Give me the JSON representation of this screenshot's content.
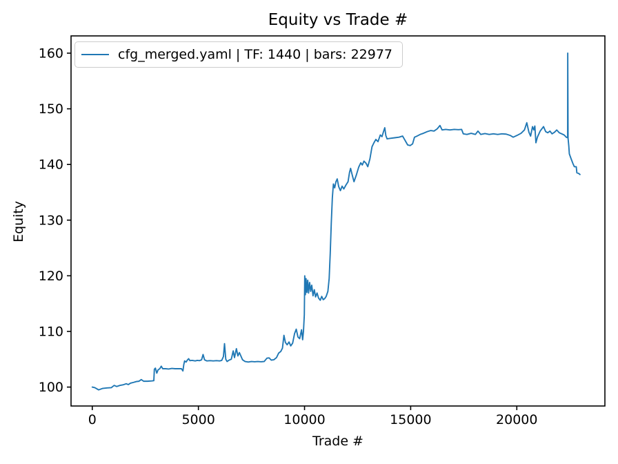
{
  "chart_data": {
    "type": "line",
    "title": "Equity vs Trade #",
    "xlabel": "Trade #",
    "ylabel": "Equity",
    "grid": false,
    "legend_position": "upper left",
    "line_color": "#1f77b4",
    "xlim": [
      -1000,
      24150
    ],
    "ylim": [
      96.6,
      163.1
    ],
    "xticks": {
      "values": [
        0,
        5000,
        10000,
        15000,
        20000
      ],
      "labels": [
        "0",
        "5000",
        "10000",
        "15000",
        "20000"
      ]
    },
    "yticks": {
      "values": [
        100,
        110,
        120,
        130,
        140,
        150,
        160
      ],
      "labels": [
        "100",
        "110",
        "120",
        "130",
        "140",
        "150",
        "160"
      ]
    },
    "series": [
      {
        "name": "cfg_merged.yaml | TF: 1440 | bars: 22977",
        "color": "#1f77b4",
        "points": [
          [
            0,
            100.0
          ],
          [
            120,
            99.9
          ],
          [
            300,
            99.5
          ],
          [
            480,
            99.75
          ],
          [
            700,
            99.85
          ],
          [
            900,
            99.9
          ],
          [
            1030,
            100.3
          ],
          [
            1150,
            100.1
          ],
          [
            1300,
            100.3
          ],
          [
            1450,
            100.4
          ],
          [
            1600,
            100.6
          ],
          [
            1700,
            100.45
          ],
          [
            1800,
            100.7
          ],
          [
            1950,
            100.85
          ],
          [
            2080,
            101.0
          ],
          [
            2200,
            101.05
          ],
          [
            2310,
            101.35
          ],
          [
            2420,
            101.05
          ],
          [
            2600,
            101.05
          ],
          [
            2800,
            101.1
          ],
          [
            2900,
            101.15
          ],
          [
            2925,
            103.2
          ],
          [
            2975,
            103.4
          ],
          [
            3040,
            102.5
          ],
          [
            3100,
            103.1
          ],
          [
            3180,
            103.3
          ],
          [
            3250,
            103.75
          ],
          [
            3320,
            103.3
          ],
          [
            3450,
            103.3
          ],
          [
            3600,
            103.25
          ],
          [
            3750,
            103.35
          ],
          [
            3900,
            103.3
          ],
          [
            4050,
            103.3
          ],
          [
            4200,
            103.3
          ],
          [
            4270,
            102.9
          ],
          [
            4310,
            104.0
          ],
          [
            4350,
            104.7
          ],
          [
            4420,
            104.5
          ],
          [
            4480,
            104.85
          ],
          [
            4540,
            105.1
          ],
          [
            4600,
            104.75
          ],
          [
            4700,
            104.8
          ],
          [
            4850,
            104.7
          ],
          [
            4950,
            104.8
          ],
          [
            5050,
            104.75
          ],
          [
            5150,
            104.9
          ],
          [
            5220,
            105.85
          ],
          [
            5290,
            104.9
          ],
          [
            5400,
            104.7
          ],
          [
            5550,
            104.75
          ],
          [
            5700,
            104.7
          ],
          [
            5850,
            104.75
          ],
          [
            6000,
            104.7
          ],
          [
            6100,
            104.8
          ],
          [
            6180,
            105.5
          ],
          [
            6230,
            107.8
          ],
          [
            6290,
            105.0
          ],
          [
            6350,
            104.6
          ],
          [
            6450,
            104.85
          ],
          [
            6550,
            105.0
          ],
          [
            6640,
            106.5
          ],
          [
            6700,
            105.3
          ],
          [
            6790,
            106.9
          ],
          [
            6860,
            105.6
          ],
          [
            6930,
            106.2
          ],
          [
            7000,
            105.6
          ],
          [
            7080,
            104.9
          ],
          [
            7200,
            104.6
          ],
          [
            7350,
            104.5
          ],
          [
            7500,
            104.6
          ],
          [
            7650,
            104.55
          ],
          [
            7800,
            104.6
          ],
          [
            7950,
            104.55
          ],
          [
            8100,
            104.6
          ],
          [
            8230,
            105.2
          ],
          [
            8330,
            105.25
          ],
          [
            8430,
            104.85
          ],
          [
            8550,
            104.9
          ],
          [
            8680,
            105.3
          ],
          [
            8780,
            106.1
          ],
          [
            8880,
            106.4
          ],
          [
            8960,
            107.0
          ],
          [
            9030,
            109.3
          ],
          [
            9100,
            108.0
          ],
          [
            9180,
            107.6
          ],
          [
            9270,
            108.1
          ],
          [
            9350,
            107.4
          ],
          [
            9440,
            107.9
          ],
          [
            9530,
            109.6
          ],
          [
            9610,
            110.4
          ],
          [
            9690,
            109.0
          ],
          [
            9770,
            108.7
          ],
          [
            9860,
            110.3
          ],
          [
            9910,
            108.5
          ],
          [
            9950,
            110.0
          ],
          [
            9990,
            113.0
          ],
          [
            10010,
            120.0
          ],
          [
            10040,
            116.6
          ],
          [
            10070,
            119.5
          ],
          [
            10110,
            117.0
          ],
          [
            10150,
            119.2
          ],
          [
            10190,
            116.9
          ],
          [
            10240,
            118.8
          ],
          [
            10290,
            117.2
          ],
          [
            10340,
            118.3
          ],
          [
            10400,
            116.4
          ],
          [
            10460,
            117.5
          ],
          [
            10520,
            116.2
          ],
          [
            10590,
            116.9
          ],
          [
            10660,
            116.0
          ],
          [
            10740,
            115.6
          ],
          [
            10810,
            116.3
          ],
          [
            10880,
            115.7
          ],
          [
            10950,
            115.9
          ],
          [
            11020,
            116.3
          ],
          [
            11100,
            117.2
          ],
          [
            11160,
            119.5
          ],
          [
            11210,
            124.0
          ],
          [
            11260,
            129.5
          ],
          [
            11310,
            134.0
          ],
          [
            11360,
            136.5
          ],
          [
            11420,
            135.8
          ],
          [
            11480,
            136.9
          ],
          [
            11540,
            137.4
          ],
          [
            11610,
            136.0
          ],
          [
            11690,
            135.3
          ],
          [
            11770,
            136.1
          ],
          [
            11850,
            135.6
          ],
          [
            11950,
            136.3
          ],
          [
            12050,
            136.9
          ],
          [
            12120,
            138.6
          ],
          [
            12170,
            139.3
          ],
          [
            12240,
            138.2
          ],
          [
            12330,
            136.9
          ],
          [
            12440,
            138.1
          ],
          [
            12550,
            139.5
          ],
          [
            12650,
            140.3
          ],
          [
            12720,
            139.9
          ],
          [
            12800,
            140.6
          ],
          [
            12900,
            140.2
          ],
          [
            12980,
            139.6
          ],
          [
            13080,
            141.0
          ],
          [
            13180,
            143.2
          ],
          [
            13270,
            143.9
          ],
          [
            13360,
            144.5
          ],
          [
            13460,
            144.1
          ],
          [
            13570,
            145.3
          ],
          [
            13650,
            145.0
          ],
          [
            13720,
            145.9
          ],
          [
            13780,
            146.6
          ],
          [
            13830,
            145.2
          ],
          [
            13890,
            144.6
          ],
          [
            14050,
            144.7
          ],
          [
            14250,
            144.8
          ],
          [
            14450,
            144.9
          ],
          [
            14620,
            145.1
          ],
          [
            14740,
            144.3
          ],
          [
            14860,
            143.5
          ],
          [
            14980,
            143.4
          ],
          [
            15090,
            143.7
          ],
          [
            15180,
            144.9
          ],
          [
            15300,
            145.1
          ],
          [
            15450,
            145.4
          ],
          [
            15600,
            145.6
          ],
          [
            15780,
            145.9
          ],
          [
            15950,
            146.1
          ],
          [
            16100,
            146.0
          ],
          [
            16250,
            146.4
          ],
          [
            16380,
            147.0
          ],
          [
            16480,
            146.2
          ],
          [
            16650,
            146.3
          ],
          [
            16850,
            146.2
          ],
          [
            17050,
            146.3
          ],
          [
            17250,
            146.25
          ],
          [
            17400,
            146.3
          ],
          [
            17480,
            145.5
          ],
          [
            17650,
            145.4
          ],
          [
            17850,
            145.6
          ],
          [
            18050,
            145.4
          ],
          [
            18170,
            146.0
          ],
          [
            18300,
            145.4
          ],
          [
            18500,
            145.55
          ],
          [
            18700,
            145.4
          ],
          [
            18900,
            145.5
          ],
          [
            19100,
            145.4
          ],
          [
            19300,
            145.5
          ],
          [
            19500,
            145.45
          ],
          [
            19700,
            145.2
          ],
          [
            19830,
            144.9
          ],
          [
            20000,
            145.2
          ],
          [
            20200,
            145.6
          ],
          [
            20360,
            146.2
          ],
          [
            20470,
            147.5
          ],
          [
            20570,
            145.8
          ],
          [
            20650,
            145.1
          ],
          [
            20740,
            146.8
          ],
          [
            20800,
            146.2
          ],
          [
            20850,
            146.9
          ],
          [
            20900,
            143.9
          ],
          [
            20970,
            144.9
          ],
          [
            21100,
            146.0
          ],
          [
            21260,
            146.8
          ],
          [
            21360,
            145.9
          ],
          [
            21460,
            145.7
          ],
          [
            21560,
            146.0
          ],
          [
            21660,
            145.5
          ],
          [
            21780,
            145.8
          ],
          [
            21880,
            146.2
          ],
          [
            22000,
            145.7
          ],
          [
            22120,
            145.5
          ],
          [
            22230,
            145.3
          ],
          [
            22330,
            144.9
          ],
          [
            22395,
            144.8
          ],
          [
            22400,
            160.0
          ],
          [
            22415,
            144.7
          ],
          [
            22450,
            143.3
          ],
          [
            22475,
            141.9
          ],
          [
            22560,
            141.0
          ],
          [
            22640,
            140.2
          ],
          [
            22710,
            139.6
          ],
          [
            22800,
            139.6
          ],
          [
            22830,
            138.5
          ],
          [
            22910,
            138.4
          ],
          [
            22977,
            138.2
          ]
        ]
      }
    ]
  }
}
